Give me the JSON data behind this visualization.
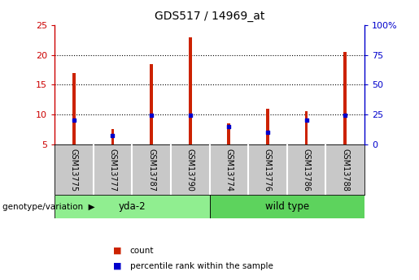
{
  "title": "GDS517 / 14969_at",
  "samples": [
    "GSM13775",
    "GSM13777",
    "GSM13787",
    "GSM13790",
    "GSM13774",
    "GSM13776",
    "GSM13786",
    "GSM13788"
  ],
  "group_spans": [
    {
      "name": "yda-2",
      "start": 0,
      "end": 3,
      "color": "#90EE90"
    },
    {
      "name": "wild type",
      "start": 4,
      "end": 7,
      "color": "#5DD35D"
    }
  ],
  "count_values": [
    17.0,
    7.5,
    18.5,
    23.0,
    8.5,
    11.0,
    10.5,
    20.5
  ],
  "percentile_values": [
    20.0,
    7.0,
    24.0,
    24.0,
    15.0,
    10.0,
    20.0,
    24.0
  ],
  "bar_bottom": 5,
  "ylim_left": [
    5,
    25
  ],
  "ylim_right": [
    0,
    100
  ],
  "yticks_left": [
    5,
    10,
    15,
    20,
    25
  ],
  "yticks_right": [
    0,
    25,
    50,
    75,
    100
  ],
  "yticklabels_right": [
    "0",
    "25",
    "50",
    "75",
    "100%"
  ],
  "left_axis_color": "#cc0000",
  "right_axis_color": "#0000cc",
  "bar_color_red": "#cc2200",
  "bar_color_blue": "#0000cc",
  "grid_color": "black",
  "bg_sample_label": "#c8c8c8",
  "legend_items": [
    "count",
    "percentile rank within the sample"
  ],
  "legend_colors": [
    "#cc2200",
    "#0000cc"
  ]
}
